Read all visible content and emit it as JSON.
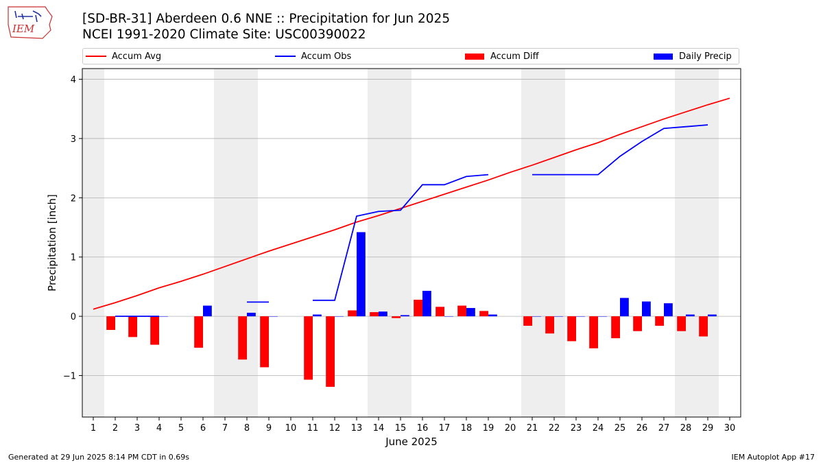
{
  "header": {
    "title_line1": "[SD-BR-31] Aberdeen 0.6 NNE :: Precipitation for Jun 2025",
    "title_line2": "NCEI 1991-2020 Climate Site: USC00390022",
    "logo_text": "IEM"
  },
  "legend": {
    "accum_avg": "Accum Avg",
    "accum_obs": "Accum Obs",
    "accum_diff": "Accum Diff",
    "daily_precip": "Daily Precip"
  },
  "colors": {
    "accum_avg": "#ff0000",
    "accum_obs": "#0000ff",
    "accum_diff": "#ff0000",
    "daily_precip": "#0000ff",
    "weekend_band": "#eeeeee"
  },
  "footer": {
    "left": "Generated at 29 Jun 2025 8:14 PM CDT in 0.69s",
    "right": "IEM Autoplot App #17"
  },
  "chart_data": {
    "type": "bar",
    "xlabel": "June 2025",
    "ylabel": "Precipitation [inch]",
    "xlim": [
      0.5,
      30.5
    ],
    "ylim": [
      -1.7,
      4.18
    ],
    "x_ticks": [
      1,
      2,
      3,
      4,
      5,
      6,
      7,
      8,
      9,
      10,
      11,
      12,
      13,
      14,
      15,
      16,
      17,
      18,
      19,
      20,
      21,
      22,
      23,
      24,
      25,
      26,
      27,
      28,
      29,
      30
    ],
    "y_ticks": [
      -1,
      0,
      1,
      2,
      3,
      4
    ],
    "y_tick_labels": [
      "−1",
      "0",
      "1",
      "2",
      "3",
      "4"
    ],
    "grid": "y",
    "legend_position": "top",
    "weekend_bands": [
      [
        0.5,
        1.5
      ],
      [
        6.5,
        8.5
      ],
      [
        13.5,
        15.5
      ],
      [
        20.5,
        22.5
      ],
      [
        27.5,
        29.5
      ]
    ],
    "days": [
      1,
      2,
      3,
      4,
      5,
      6,
      7,
      8,
      9,
      10,
      11,
      12,
      13,
      14,
      15,
      16,
      17,
      18,
      19,
      20,
      21,
      22,
      23,
      24,
      25,
      26,
      27,
      28,
      29,
      30
    ],
    "series": [
      {
        "name": "Accum Avg",
        "kind": "line",
        "values": [
          0.12,
          0.23,
          0.35,
          0.48,
          0.59,
          0.71,
          0.84,
          0.97,
          1.1,
          1.22,
          1.34,
          1.46,
          1.59,
          1.7,
          1.82,
          1.94,
          2.06,
          2.18,
          2.3,
          2.43,
          2.55,
          2.68,
          2.81,
          2.93,
          3.07,
          3.2,
          3.33,
          3.45,
          3.57,
          3.68
        ]
      },
      {
        "name": "Accum Obs",
        "kind": "line",
        "values": [
          null,
          0.0,
          0.0,
          0.0,
          null,
          null,
          null,
          0.24,
          0.24,
          null,
          0.27,
          0.27,
          1.69,
          1.77,
          1.79,
          2.22,
          2.22,
          2.36,
          2.39,
          null,
          2.39,
          2.39,
          2.39,
          2.39,
          2.7,
          2.95,
          3.17,
          3.2,
          3.23,
          null
        ]
      },
      {
        "name": "Accum Diff",
        "kind": "bar",
        "values": [
          null,
          -0.23,
          -0.35,
          -0.48,
          null,
          -0.53,
          null,
          -0.73,
          -0.86,
          null,
          -1.07,
          -1.19,
          0.1,
          0.07,
          -0.03,
          0.28,
          0.16,
          0.18,
          0.09,
          null,
          -0.16,
          -0.29,
          -0.42,
          -0.54,
          -0.37,
          -0.25,
          -0.16,
          -0.25,
          -0.34,
          null
        ]
      },
      {
        "name": "Daily Precip",
        "kind": "bar",
        "values": [
          null,
          0.0,
          0.0,
          0.0,
          null,
          0.18,
          null,
          0.06,
          0.0,
          null,
          0.03,
          0.0,
          1.42,
          0.08,
          0.02,
          0.43,
          0.0,
          0.14,
          0.03,
          null,
          0.0,
          0.0,
          0.0,
          0.0,
          0.31,
          0.25,
          0.22,
          0.03,
          0.03,
          null
        ]
      }
    ]
  }
}
